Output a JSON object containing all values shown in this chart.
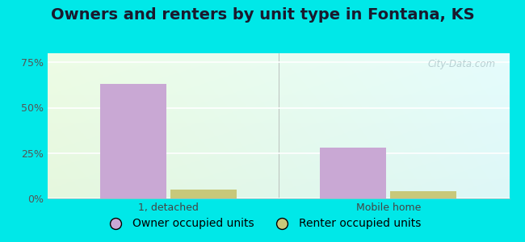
{
  "title": "Owners and renters by unit type in Fontana, KS",
  "categories": [
    "1, detached",
    "Mobile home"
  ],
  "owner_values": [
    63,
    28
  ],
  "renter_values": [
    5,
    4
  ],
  "owner_color": "#c9a8d4",
  "renter_color": "#c8c87a",
  "yticks": [
    0,
    25,
    50,
    75
  ],
  "ytick_labels": [
    "0%",
    "25%",
    "50%",
    "75%"
  ],
  "ylim": [
    0,
    80
  ],
  "bar_width": 0.3,
  "legend_owner": "Owner occupied units",
  "legend_renter": "Renter occupied units",
  "watermark": "City-Data.com",
  "title_fontsize": 14,
  "tick_fontsize": 9,
  "legend_fontsize": 10,
  "fig_bg": "#00e8e8",
  "grad_tl": [
    0.93,
    0.99,
    0.9
  ],
  "grad_tr": [
    0.9,
    0.99,
    0.99
  ],
  "grad_bl": [
    0.9,
    0.97,
    0.87
  ],
  "grad_br": [
    0.87,
    0.97,
    0.97
  ]
}
